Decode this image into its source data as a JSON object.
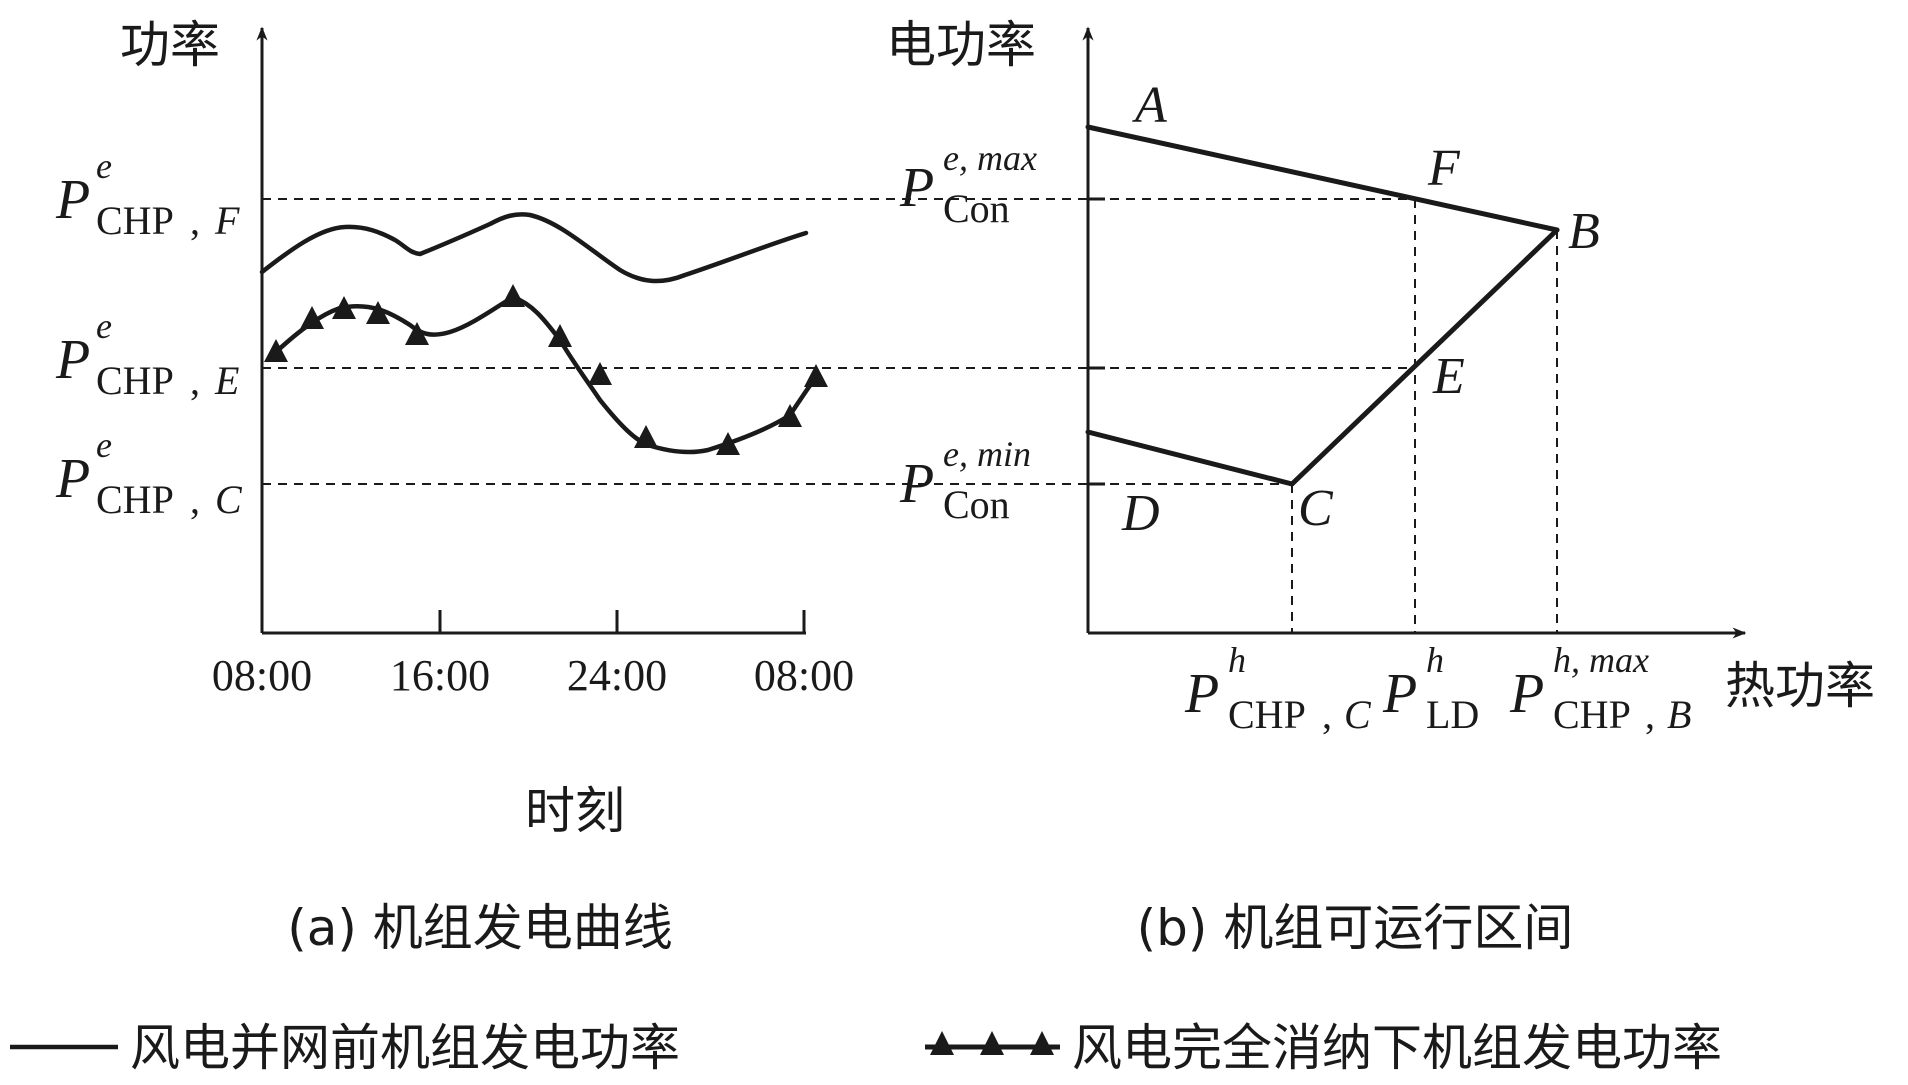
{
  "panel_a": {
    "y_axis_label": "功率",
    "x_axis_label": "时刻",
    "caption": "(a) 机组发电曲线",
    "x_ticks": [
      "08:00",
      "16:00",
      "24:00",
      "08:00"
    ],
    "levels": [
      {
        "base": "P",
        "sup": "e",
        "sub": "CHP",
        "sub_italic": "F"
      },
      {
        "base": "P",
        "sup": "e",
        "sub": "CHP",
        "sub_italic": "E"
      },
      {
        "base": "P",
        "sup": "e",
        "sub": "CHP",
        "sub_italic": "C"
      }
    ]
  },
  "panel_b": {
    "y_axis_label": "电功率",
    "x_axis_label": "热功率",
    "caption": "(b) 机组可运行区间",
    "points": {
      "A": "A",
      "B": "B",
      "C": "C",
      "D": "D",
      "E": "E",
      "F": "F"
    },
    "y_labels": [
      {
        "base": "P",
        "sup": "e, max",
        "sub": "Con"
      },
      {
        "base": "P",
        "sup": "e, min",
        "sub": "Con"
      }
    ],
    "x_labels": [
      {
        "base": "P",
        "sup": "h",
        "sub": "CHP",
        "sub_italic": "C"
      },
      {
        "base": "P",
        "sup": "h",
        "sub": "LD",
        "sub_italic": ""
      },
      {
        "base": "P",
        "sup": "h, max",
        "sub": "CHP",
        "sub_italic": "B"
      }
    ]
  },
  "legend": [
    {
      "marker": "line",
      "label": "风电并网前机组发电功率"
    },
    {
      "marker": "triangle-line",
      "label": "风电完全消纳下机组发电功率"
    }
  ]
}
